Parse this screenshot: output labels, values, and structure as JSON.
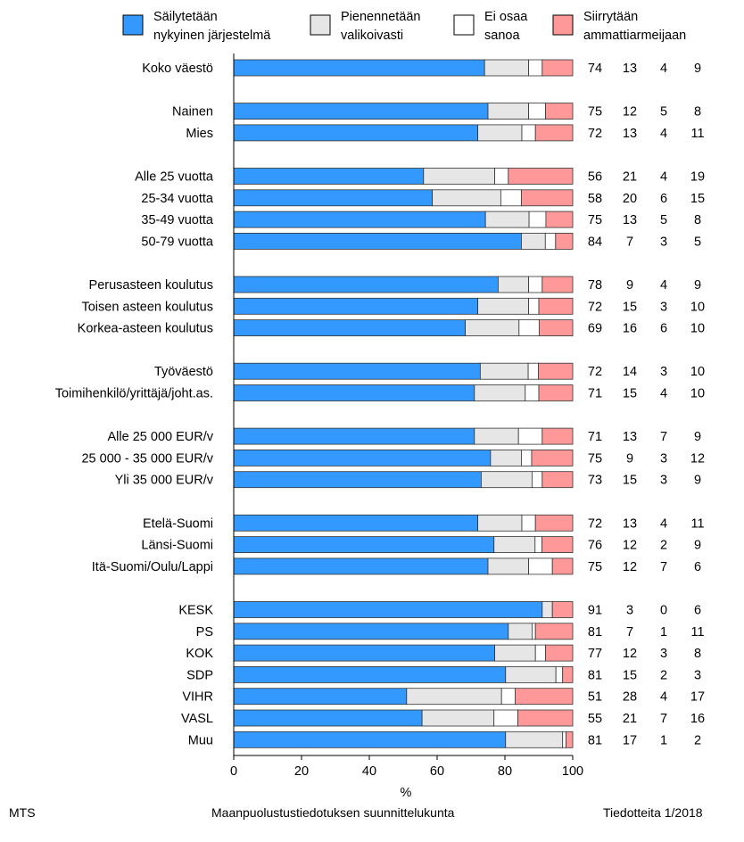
{
  "chart_data": {
    "type": "bar",
    "stacked": true,
    "orientation": "horizontal",
    "xlabel": "%",
    "xlim": [
      0,
      100
    ],
    "xticks": [
      0,
      20,
      40,
      60,
      80,
      100
    ],
    "legend_position": "top",
    "series": [
      {
        "name": "Säilytetään nykyinen järjestelmä",
        "label_lines": [
          "Säilytetään",
          "nykyinen järjestelmä"
        ],
        "color": "#3399ff"
      },
      {
        "name": "Pienennetään valikoivasti",
        "label_lines": [
          "Pienennetään",
          "valikoivasti"
        ],
        "color": "#e6e6e6"
      },
      {
        "name": "Ei osaa sanoa",
        "label_lines": [
          "Ei osaa",
          "sanoa"
        ],
        "color": "#ffffff"
      },
      {
        "name": "Siirrytään ammattiarmeijaan",
        "label_lines": [
          "Siirrytään",
          "ammattiarmeijaan"
        ],
        "color": "#ff9999"
      }
    ],
    "groups": [
      {
        "rows": [
          {
            "label": "Koko väestö",
            "values": [
              74,
              13,
              4,
              9
            ]
          }
        ]
      },
      {
        "rows": [
          {
            "label": "Nainen",
            "values": [
              75,
              12,
              5,
              8
            ]
          },
          {
            "label": "Mies",
            "values": [
              72,
              13,
              4,
              11
            ]
          }
        ]
      },
      {
        "rows": [
          {
            "label": "Alle 25 vuotta",
            "values": [
              56,
              21,
              4,
              19
            ]
          },
          {
            "label": "25-34 vuotta",
            "values": [
              58,
              20,
              6,
              15
            ]
          },
          {
            "label": "35-49 vuotta",
            "values": [
              75,
              13,
              5,
              8
            ]
          },
          {
            "label": "50-79 vuotta",
            "values": [
              84,
              7,
              3,
              5
            ]
          }
        ]
      },
      {
        "rows": [
          {
            "label": "Perusasteen koulutus",
            "values": [
              78,
              9,
              4,
              9
            ]
          },
          {
            "label": "Toisen asteen koulutus",
            "values": [
              72,
              15,
              3,
              10
            ]
          },
          {
            "label": "Korkea-asteen koulutus",
            "values": [
              69,
              16,
              6,
              10
            ]
          }
        ]
      },
      {
        "rows": [
          {
            "label": "Työväestö",
            "values": [
              72,
              14,
              3,
              10
            ]
          },
          {
            "label": "Toimihenkilö/yrittäjä/joht.as.",
            "values": [
              71,
              15,
              4,
              10
            ]
          }
        ]
      },
      {
        "rows": [
          {
            "label": "Alle 25 000 EUR/v",
            "values": [
              71,
              13,
              7,
              9
            ]
          },
          {
            "label": "25 000 - 35 000 EUR/v",
            "values": [
              75,
              9,
              3,
              12
            ]
          },
          {
            "label": "Yli 35 000 EUR/v",
            "values": [
              73,
              15,
              3,
              9
            ]
          }
        ]
      },
      {
        "rows": [
          {
            "label": "Etelä-Suomi",
            "values": [
              72,
              13,
              4,
              11
            ]
          },
          {
            "label": "Länsi-Suomi",
            "values": [
              76,
              12,
              2,
              9
            ]
          },
          {
            "label": "Itä-Suomi/Oulu/Lappi",
            "values": [
              75,
              12,
              7,
              6
            ]
          }
        ]
      },
      {
        "rows": [
          {
            "label": "KESK",
            "values": [
              91,
              3,
              0,
              6
            ]
          },
          {
            "label": "PS",
            "values": [
              81,
              7,
              1,
              11
            ]
          },
          {
            "label": "KOK",
            "values": [
              77,
              12,
              3,
              8
            ]
          },
          {
            "label": "SDP",
            "values": [
              81,
              15,
              2,
              3
            ]
          },
          {
            "label": "VIHR",
            "values": [
              51,
              28,
              4,
              17
            ]
          },
          {
            "label": "VASL",
            "values": [
              55,
              21,
              7,
              16
            ]
          },
          {
            "label": "Muu",
            "values": [
              81,
              17,
              1,
              2
            ]
          }
        ]
      }
    ]
  },
  "footer": {
    "left": "MTS",
    "center": "Maanpuolustustiedotuksen suunnittelukunta",
    "right": "Tiedotteita 1/2018"
  }
}
